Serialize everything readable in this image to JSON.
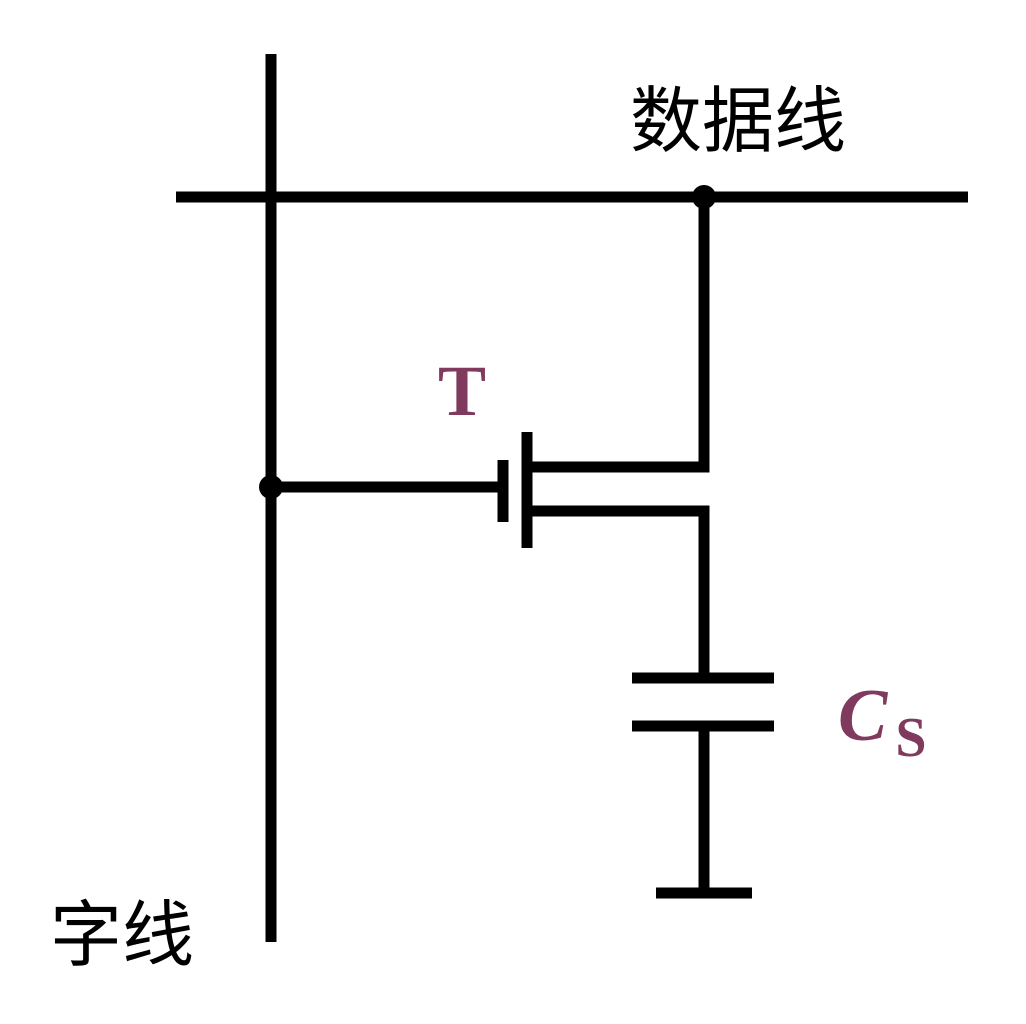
{
  "labels": {
    "data_line": "数据线",
    "word_line": "字线",
    "transistor": "T",
    "capacitor_main": "C",
    "capacitor_sub": "S"
  },
  "colors": {
    "wire": "#000000",
    "symbol_label": "#7f3a5d",
    "background": "#ffffff"
  }
}
